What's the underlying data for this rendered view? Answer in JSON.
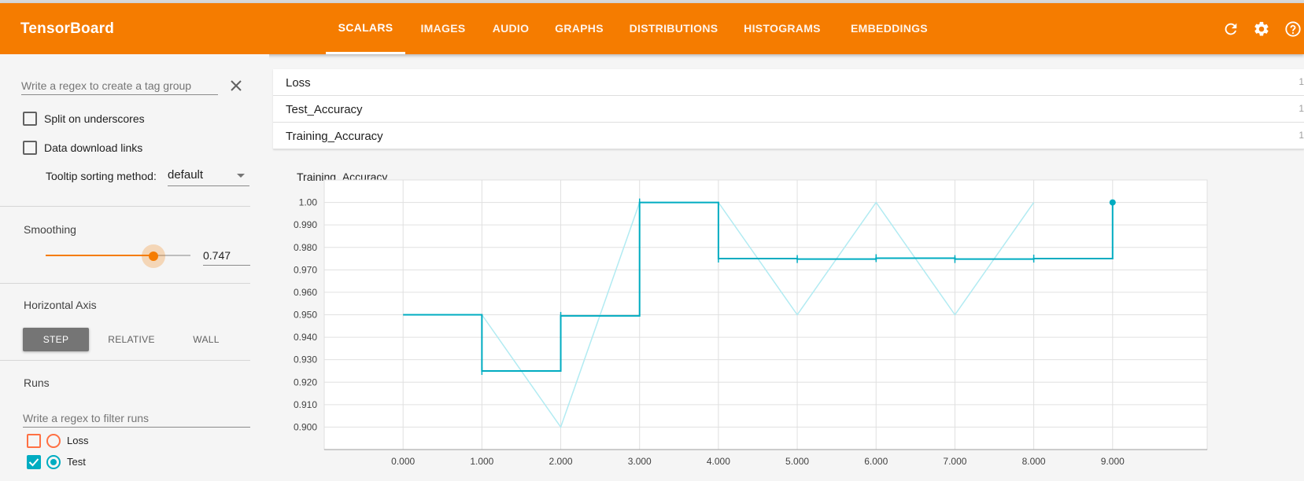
{
  "header": {
    "brand": "TensorBoard",
    "tabs": [
      {
        "label": "SCALARS",
        "active": true
      },
      {
        "label": "IMAGES",
        "active": false
      },
      {
        "label": "AUDIO",
        "active": false
      },
      {
        "label": "GRAPHS",
        "active": false
      },
      {
        "label": "DISTRIBUTIONS",
        "active": false
      },
      {
        "label": "HISTOGRAMS",
        "active": false
      },
      {
        "label": "EMBEDDINGS",
        "active": false
      }
    ],
    "icons": [
      "refresh-icon",
      "gear-icon",
      "help-icon"
    ]
  },
  "sidebar": {
    "tag_regex_placeholder": "Write a regex to create a tag group",
    "split_underscores": {
      "label": "Split on underscores",
      "checked": false
    },
    "data_download": {
      "label": "Data download links",
      "checked": false
    },
    "tooltip_sort": {
      "label": "Tooltip sorting method:",
      "value": "default"
    },
    "smoothing": {
      "title": "Smoothing",
      "value": "0.747",
      "fraction": 0.747
    },
    "horizontal_axis": {
      "title": "Horizontal Axis",
      "options": [
        {
          "label": "STEP",
          "active": true
        },
        {
          "label": "RELATIVE",
          "active": false
        },
        {
          "label": "WALL",
          "active": false
        }
      ]
    },
    "runs": {
      "title": "Runs",
      "filter_placeholder": "Write a regex to filter runs",
      "items": [
        {
          "label": "Loss",
          "checked": false,
          "color": "#ff7043"
        },
        {
          "label": "Test",
          "checked": true,
          "color": "#00acc1"
        }
      ]
    }
  },
  "main": {
    "categories": [
      {
        "name": "Loss",
        "count": "1"
      },
      {
        "name": "Test_Accuracy",
        "count": "1"
      },
      {
        "name": "Training_Accuracy",
        "count": "1"
      }
    ]
  },
  "chart_data": {
    "type": "line",
    "title": "Training_Accuracy",
    "xlabel": "",
    "ylabel": "",
    "xlim": [
      -1,
      10.2
    ],
    "ylim": [
      0.89,
      1.01
    ],
    "x_ticks": [
      "0.000",
      "1.000",
      "2.000",
      "3.000",
      "4.000",
      "5.000",
      "6.000",
      "7.000",
      "8.000",
      "9.000"
    ],
    "y_ticks": [
      "0.900",
      "0.910",
      "0.920",
      "0.930",
      "0.940",
      "0.950",
      "0.960",
      "0.970",
      "0.980",
      "0.990",
      "1.00"
    ],
    "grid": true,
    "series": [
      {
        "name": "",
        "role": "raw",
        "color": "#b2ebf2",
        "x": [
          1,
          2,
          3,
          4,
          5,
          6,
          7,
          8
        ],
        "y": [
          0.95,
          0.9,
          1.0,
          1.0,
          0.95,
          1.0,
          0.95,
          1.0
        ]
      },
      {
        "name": "",
        "role": "smoothed",
        "color": "#00acc1",
        "x": [
          0,
          1,
          2,
          3,
          4,
          5,
          6,
          7,
          8,
          9
        ],
        "y": [
          0.95,
          0.925,
          0.9495,
          1.0,
          0.975,
          0.9748,
          0.9752,
          0.9748,
          0.975,
          1.0
        ]
      }
    ]
  }
}
